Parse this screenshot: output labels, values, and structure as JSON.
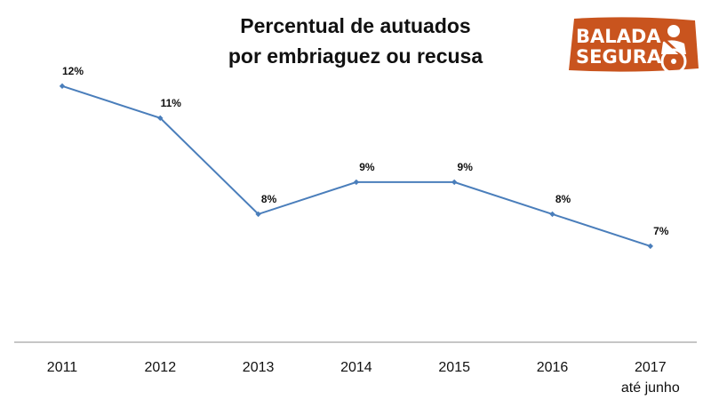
{
  "title_line1": "Percentual de autuados",
  "title_line2": "por embriaguez ou recusa",
  "logo": {
    "line1": "BALADA",
    "line2": "SEGURA",
    "color": "#C9541E",
    "icon": "seatbelt-steering-wheel-icon"
  },
  "chart_data": {
    "type": "line",
    "categories": [
      "2011",
      "2012",
      "2013",
      "2014",
      "2015",
      "2016",
      "2017"
    ],
    "category_sublabels": [
      "",
      "",
      "",
      "",
      "",
      "",
      "até junho"
    ],
    "series": [
      {
        "values": [
          12,
          11,
          8,
          9,
          9,
          8,
          7
        ],
        "labels": [
          "12%",
          "11%",
          "8%",
          "9%",
          "9%",
          "8%",
          "7%"
        ],
        "color": "#4A7EBB"
      }
    ],
    "y_unit": "%",
    "ylim": [
      4,
      13.3
    ],
    "grid": false,
    "legend": "none"
  }
}
